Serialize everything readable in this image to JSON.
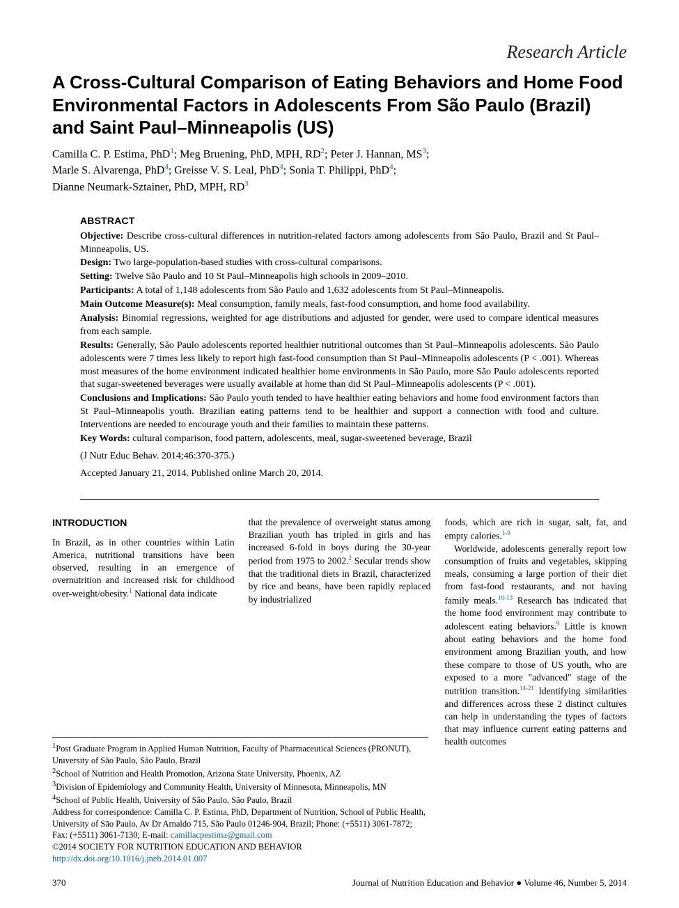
{
  "articleType": "Research Article",
  "title": "A Cross-Cultural Comparison of Eating Behaviors and Home Food Environmental Factors in Adolescents From São Paulo (Brazil) and Saint Paul–Minneapolis (US)",
  "authors": [
    {
      "name": "Camilla C. P. Estima, PhD",
      "aff": "1"
    },
    {
      "name": "Meg Bruening, PhD, MPH, RD",
      "aff": "2"
    },
    {
      "name": "Peter J. Hannan, MS",
      "aff": "3"
    },
    {
      "name": "Marle S. Alvarenga, PhD",
      "aff": "4"
    },
    {
      "name": "Greisse V. S. Leal, PhD",
      "aff": "4"
    },
    {
      "name": "Sonia T. Philippi, PhD",
      "aff": "4"
    },
    {
      "name": "Dianne Neumark-Sztainer, PhD, MPH, RD",
      "aff": "3"
    }
  ],
  "abstract": {
    "heading": "ABSTRACT",
    "rows": [
      {
        "label": "Objective:",
        "text": " Describe cross-cultural differences in nutrition-related factors among adolescents from São Paulo, Brazil and St Paul–Minneapolis, US."
      },
      {
        "label": "Design:",
        "text": " Two large-population-based studies with cross-cultural comparisons."
      },
      {
        "label": "Setting:",
        "text": " Twelve São Paulo and 10 St Paul–Minneapolis high schools in 2009–2010."
      },
      {
        "label": "Participants:",
        "text": " A total of 1,148 adolescents from São Paulo and 1,632 adolescents from St Paul–Minneapolis."
      },
      {
        "label": "Main Outcome Measure(s):",
        "text": " Meal consumption, family meals, fast-food consumption, and home food availability."
      },
      {
        "label": "Analysis:",
        "text": " Binomial regressions, weighted for age distributions and adjusted for gender, were used to compare identical measures from each sample."
      },
      {
        "label": "Results:",
        "text": " Generally, São Paulo adolescents reported healthier nutritional outcomes than St Paul–Minneapolis adolescents. São Paulo adolescents were 7 times less likely to report high fast-food consumption than St Paul–Minneapolis adolescents (P < .001). Whereas most measures of the home environment indicated healthier home environments in São Paulo, more São Paulo adolescents reported that sugar-sweetened beverages were usually available at home than did St Paul–Minneapolis adolescents (P < .001)."
      },
      {
        "label": "Conclusions and Implications:",
        "text": " São Paulo youth tended to have healthier eating behaviors and home food environment factors than St Paul–Minneapolis youth. Brazilian eating patterns tend to be healthier and support a connection with food and culture. Interventions are needed to encourage youth and their families to maintain these patterns."
      },
      {
        "label": "Key Words:",
        "text": " cultural comparison, food pattern, adolescents, meal, sugar-sweetened beverage, Brazil"
      }
    ],
    "citation": "(J Nutr Educ Behav. 2014;46:370-375.)",
    "accepted": "Accepted January 21, 2014. Published online March 20, 2014."
  },
  "body": {
    "introHead": "INTRODUCTION",
    "col1a": "In Brazil, as in other countries within Latin America, nutritional transitions have been observed, resulting in an emergence of overnutrition and increased risk for childhood over-weight/obesity.",
    "col1ref1": "1",
    "col1b": " National data indicate",
    "col2a": "that the prevalence of overweight status among Brazilian youth has tripled in girls and has increased 6-fold in boys during the 30-year period from 1975 to 2002.",
    "col2ref2": "2",
    "col2b": " Secular trends show that the traditional diets in Brazil, characterized by rice and beans, have been rapidly replaced by industrialized",
    "col3a": "foods, which are rich in sugar, salt, fat, and empty calories.",
    "col3ref19": "1-9",
    "col3b": "Worldwide, adolescents generally report low consumption of fruits and vegetables, skipping meals, consuming a large portion of their diet from fast-food restaurants, and not having family meals.",
    "col3ref1013": "10-13",
    "col3c": " Research has indicated that the home food environment may contribute to adolescent eating behaviors.",
    "col3ref9": "9",
    "col3d": " Little is known about eating behaviors and the home food environment among Brazilian youth, and how these compare to those of US youth, who are exposed to a more \"advanced\" stage of the nutrition transition.",
    "col3ref1421": "14-21",
    "col3e": " Identifying similarities and differences across these 2 distinct cultures can help in understanding the types of factors that may influence current eating patterns and health outcomes"
  },
  "affiliations": {
    "a1": "Post Graduate Program in Applied Human Nutrition, Faculty of Pharmaceutical Sciences (PRONUT), University of São Paulo, São Paulo, Brazil",
    "a2": "School of Nutrition and Health Promotion, Arizona State University, Phoenix, AZ",
    "a3": "Division of Epidemiology and Community Health, University of Minnesota, Minneapolis, MN",
    "a4": "School of Public Health, University of São Paulo, São Paulo, Brazil",
    "corr": "Address for correspondence: Camilla C. P. Estima, PhD, Department of Nutrition, School of Public Health, University of São Paulo, Av Dr Arnaldo 715, São Paulo 01246-904, Brazil; Phone: (+5511) 3061-7872; Fax: (+5511) 3061-7130; E-mail: ",
    "email": "camillacpestima@gmail.com",
    "copyright": "©2014 SOCIETY FOR NUTRITION EDUCATION AND BEHAVIOR",
    "doi": "http://dx.doi.org/10.1016/j.jneb.2014.01.007"
  },
  "footer": {
    "page": "370",
    "source": "Journal of Nutrition Education and Behavior ● Volume 46, Number 5, 2014"
  },
  "colors": {
    "link": "#0066cc",
    "text": "#000000",
    "bg": "#ffffff"
  }
}
